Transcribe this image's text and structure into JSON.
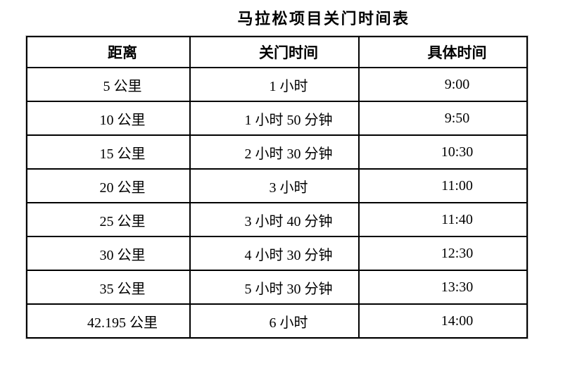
{
  "page": {
    "background": "#ffffff"
  },
  "title": "马拉松项目关门时间表",
  "table": {
    "headers": {
      "distance": "距离",
      "closing": "关门时间",
      "time": "具体时间"
    },
    "rows": [
      {
        "distance": "5 公里",
        "closing": "1 小时",
        "time": "9:00"
      },
      {
        "distance": "10 公里",
        "closing": "1 小时 50 分钟",
        "time": "9:50"
      },
      {
        "distance": "15 公里",
        "closing": "2 小时 30 分钟",
        "time": "10:30"
      },
      {
        "distance": "20 公里",
        "closing": "3 小时",
        "time": "11:00"
      },
      {
        "distance": "25 公里",
        "closing": "3 小时 40 分钟",
        "time": "11:40"
      },
      {
        "distance": "30 公里",
        "closing": "4 小时 30 分钟",
        "time": "12:30"
      },
      {
        "distance": "35 公里",
        "closing": "5 小时 30 分钟",
        "time": "13:30"
      },
      {
        "distance": "42.195 公里",
        "closing": "6 小时",
        "time": "14:00"
      }
    ]
  },
  "colors": {
    "text": "#000000",
    "border": "#000000",
    "background": "#ffffff"
  }
}
